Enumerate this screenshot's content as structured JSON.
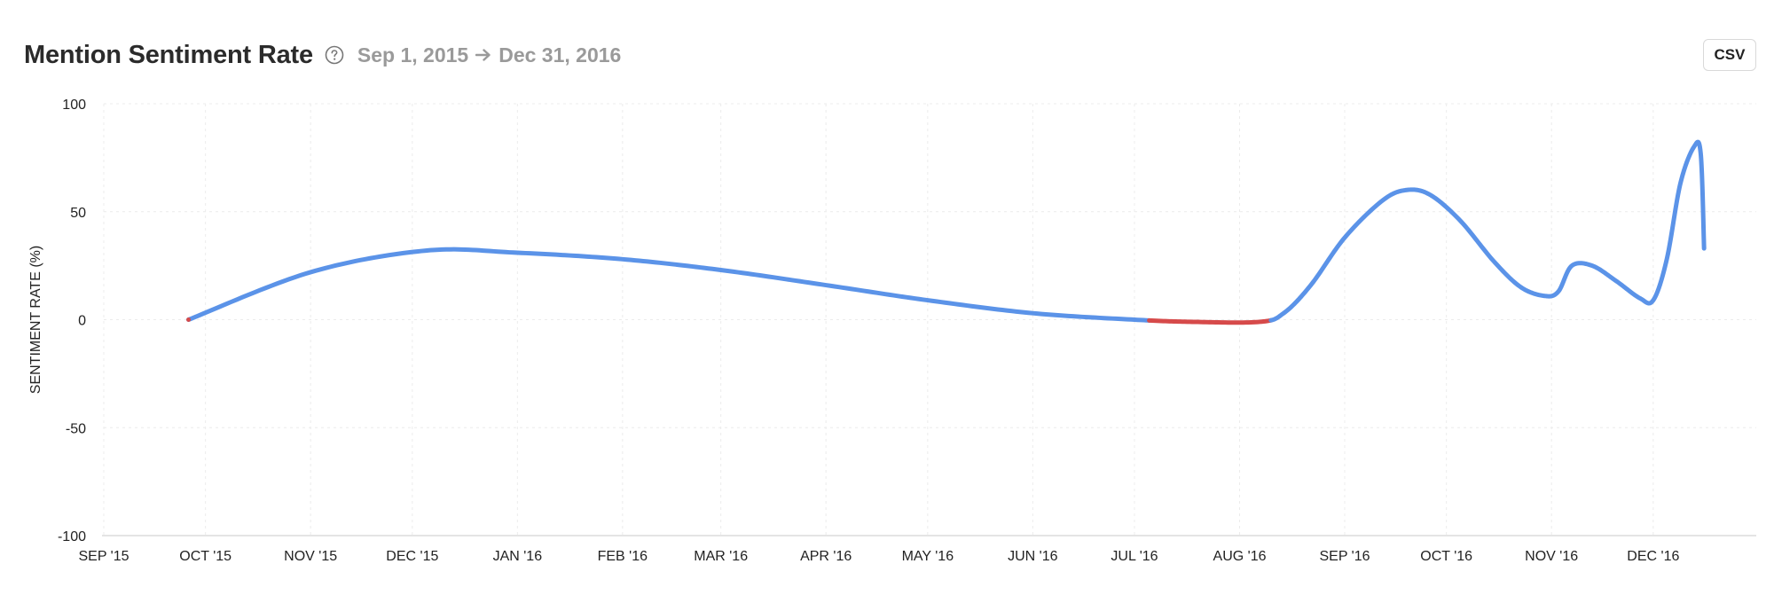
{
  "header": {
    "title": "Mention Sentiment Rate",
    "help_icon": "question-circle-icon",
    "date_start": "Sep 1, 2015",
    "arrow_icon": "arrow-right-icon",
    "date_end": "Dec 31, 2016"
  },
  "toolbar": {
    "csv_label": "CSV"
  },
  "chart_data": {
    "type": "line",
    "title": "Mention Sentiment Rate",
    "xlabel": "",
    "ylabel": "SENTIMENT RATE (%)",
    "ylim": [
      -100,
      100
    ],
    "yticks": [
      100,
      50,
      0,
      -50,
      -100
    ],
    "xlim": [
      "2015-09-01",
      "2016-12-31"
    ],
    "xticks": [
      {
        "date": "2015-09-01",
        "label": "SEP '15"
      },
      {
        "date": "2015-10-01",
        "label": "OCT '15"
      },
      {
        "date": "2015-11-01",
        "label": "NOV '15"
      },
      {
        "date": "2015-12-01",
        "label": "DEC '15"
      },
      {
        "date": "2016-01-01",
        "label": "JAN '16"
      },
      {
        "date": "2016-02-01",
        "label": "FEB '16"
      },
      {
        "date": "2016-03-01",
        "label": "MAR '16"
      },
      {
        "date": "2016-04-01",
        "label": "APR '16"
      },
      {
        "date": "2016-05-01",
        "label": "MAY '16"
      },
      {
        "date": "2016-06-01",
        "label": "JUN '16"
      },
      {
        "date": "2016-07-01",
        "label": "JUL '16"
      },
      {
        "date": "2016-08-01",
        "label": "AUG '16"
      },
      {
        "date": "2016-09-01",
        "label": "SEP '16"
      },
      {
        "date": "2016-10-01",
        "label": "OCT '16"
      },
      {
        "date": "2016-11-01",
        "label": "NOV '16"
      },
      {
        "date": "2016-12-01",
        "label": "DEC '16"
      }
    ],
    "grid": true,
    "series": [
      {
        "color": "#5b93e8",
        "negative_color": "#d64a4a",
        "points": [
          {
            "x": "2015-09-26",
            "y": 0
          },
          {
            "x": "2015-11-01",
            "y": 22
          },
          {
            "x": "2015-12-05",
            "y": 32
          },
          {
            "x": "2016-01-01",
            "y": 31
          },
          {
            "x": "2016-02-01",
            "y": 28
          },
          {
            "x": "2016-03-01",
            "y": 23
          },
          {
            "x": "2016-04-01",
            "y": 16
          },
          {
            "x": "2016-05-01",
            "y": 9
          },
          {
            "x": "2016-06-01",
            "y": 3
          },
          {
            "x": "2016-07-01",
            "y": 0
          },
          {
            "x": "2016-07-18",
            "y": -1
          },
          {
            "x": "2016-08-07",
            "y": -1
          },
          {
            "x": "2016-08-14",
            "y": 3
          },
          {
            "x": "2016-08-22",
            "y": 16
          },
          {
            "x": "2016-09-01",
            "y": 38
          },
          {
            "x": "2016-09-12",
            "y": 55
          },
          {
            "x": "2016-09-19",
            "y": 60
          },
          {
            "x": "2016-09-26",
            "y": 58
          },
          {
            "x": "2016-10-05",
            "y": 46
          },
          {
            "x": "2016-10-15",
            "y": 27
          },
          {
            "x": "2016-10-23",
            "y": 15
          },
          {
            "x": "2016-10-30",
            "y": 11
          },
          {
            "x": "2016-11-03",
            "y": 13
          },
          {
            "x": "2016-11-07",
            "y": 25
          },
          {
            "x": "2016-11-13",
            "y": 25
          },
          {
            "x": "2016-11-20",
            "y": 18
          },
          {
            "x": "2016-11-27",
            "y": 10
          },
          {
            "x": "2016-12-01",
            "y": 9
          },
          {
            "x": "2016-12-05",
            "y": 28
          },
          {
            "x": "2016-12-09",
            "y": 63
          },
          {
            "x": "2016-12-13",
            "y": 80
          },
          {
            "x": "2016-12-15",
            "y": 77
          },
          {
            "x": "2016-12-16",
            "y": 33
          }
        ]
      }
    ]
  }
}
